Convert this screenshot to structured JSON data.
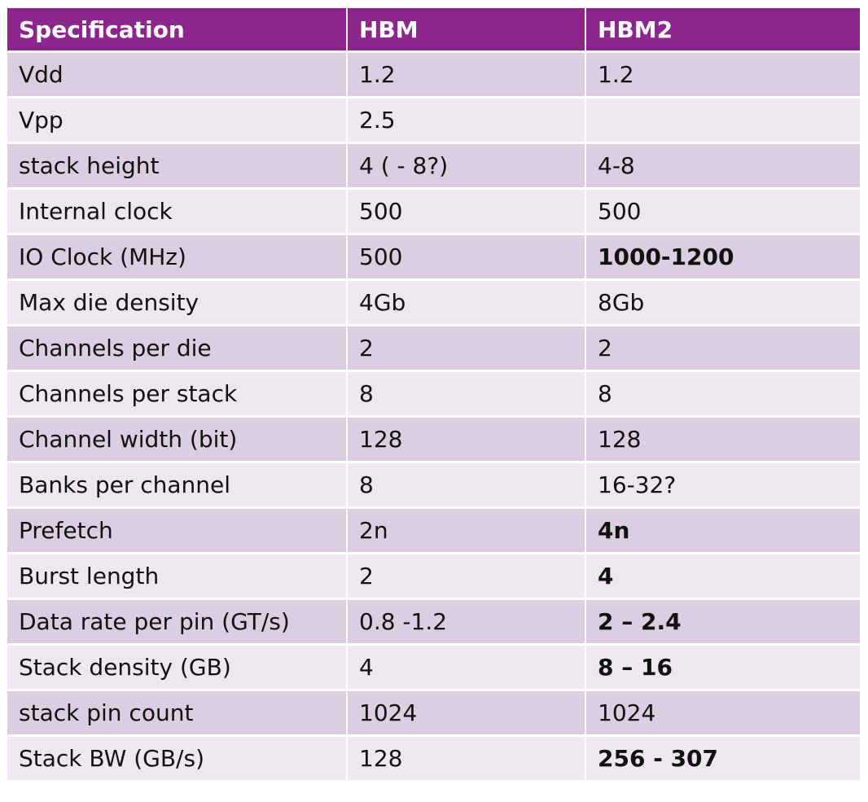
{
  "table": {
    "headers": [
      "Specification",
      "HBM",
      "HBM2"
    ],
    "rows": [
      {
        "spec": "Vdd",
        "hbm": "1.2",
        "hbm2": "1.2",
        "hbm2_bold": false
      },
      {
        "spec": "Vpp",
        "hbm": "2.5",
        "hbm2": "",
        "hbm2_bold": false
      },
      {
        "spec": "stack height",
        "hbm": "4 ( - 8?)",
        "hbm2": "4-8",
        "hbm2_bold": false
      },
      {
        "spec": "Internal clock",
        "hbm": "500",
        "hbm2": "500",
        "hbm2_bold": false
      },
      {
        "spec": "IO Clock (MHz)",
        "hbm": "500",
        "hbm2": "1000-1200",
        "hbm2_bold": true
      },
      {
        "spec": "Max die density",
        "hbm": "4Gb",
        "hbm2": "8Gb",
        "hbm2_bold": false
      },
      {
        "spec": "Channels per die",
        "hbm": "2",
        "hbm2": "2",
        "hbm2_bold": false
      },
      {
        "spec": "Channels per stack",
        "hbm": "8",
        "hbm2": "8",
        "hbm2_bold": false
      },
      {
        "spec": "Channel width (bit)",
        "hbm": "128",
        "hbm2": "128",
        "hbm2_bold": false
      },
      {
        "spec": "Banks per channel",
        "hbm": "8",
        "hbm2": "16-32?",
        "hbm2_bold": false
      },
      {
        "spec": "Prefetch",
        "hbm": "2n",
        "hbm2": "4n",
        "hbm2_bold": true
      },
      {
        "spec": "Burst length",
        "hbm": "2",
        "hbm2": "4",
        "hbm2_bold": true
      },
      {
        "spec": "Data rate per pin (GT/s)",
        "hbm": "0.8 -1.2",
        "hbm2": "2 – 2.4",
        "hbm2_bold": true
      },
      {
        "spec": "Stack density (GB)",
        "hbm": "4",
        "hbm2": "8 – 16",
        "hbm2_bold": true
      },
      {
        "spec": "stack pin count",
        "hbm": "1024",
        "hbm2": "1024",
        "hbm2_bold": false
      },
      {
        "spec": "Stack BW (GB/s)",
        "hbm": "128",
        "hbm2": "256 - 307",
        "hbm2_bold": true
      }
    ]
  },
  "colors": {
    "header_bg": "#8b278c",
    "header_text": "#ffffff",
    "row_odd_bg": "#dccde0",
    "row_even_bg": "#eee7f0",
    "cell_text": "#111111"
  }
}
